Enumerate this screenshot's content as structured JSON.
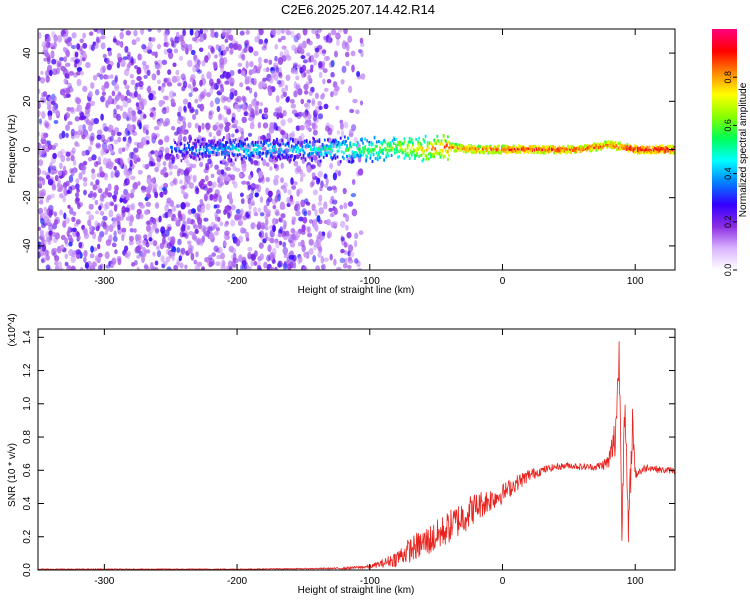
{
  "title": "C2E6.2025.207.14.42.R14",
  "colors": {
    "line": "#e8231e",
    "spectrogram_noise": "#8a2be2",
    "background": "#ffffff"
  },
  "chart_data": [
    {
      "type": "heatmap",
      "xlabel": "Height of straight line (km)",
      "ylabel": "Frequency (Hz)",
      "xlim": [
        -350,
        130
      ],
      "ylim": [
        -50,
        50
      ],
      "xticks": [
        -300,
        -200,
        -100,
        0,
        100
      ],
      "yticks": [
        -40,
        -20,
        0,
        20,
        40
      ],
      "grid": false,
      "colorbar": {
        "label": "Normalized spectral amplitude",
        "range": [
          0,
          1
        ],
        "ticks": [
          "0.0",
          "0.2",
          "0.4",
          "0.6",
          "0.8"
        ],
        "tick_values": [
          0.0,
          0.2,
          0.4,
          0.6,
          0.8
        ],
        "colormap": [
          "#ffffff",
          "#d9b3ff",
          "#8a2be2",
          "#3300ff",
          "#0080ff",
          "#00ffff",
          "#00ff55",
          "#88ff00",
          "#ffff00",
          "#ff8800",
          "#ff0000",
          "#ff0080"
        ]
      },
      "signal_ridge": {
        "x": [
          -250,
          -200,
          -150,
          -120,
          -100,
          -80,
          -60,
          -40,
          -20,
          0,
          20,
          40,
          60,
          80,
          90,
          100,
          130
        ],
        "center_freq_hz": [
          0,
          0,
          0,
          0,
          0,
          1,
          0,
          1,
          0,
          0,
          0,
          0,
          0,
          2,
          1,
          0,
          0
        ],
        "amplitude": [
          0.35,
          0.45,
          0.45,
          0.55,
          0.6,
          0.65,
          0.75,
          0.85,
          0.85,
          0.9,
          0.9,
          0.9,
          0.9,
          0.85,
          0.9,
          0.95,
          0.95
        ]
      },
      "noise_region_x": [
        -350,
        -105
      ]
    },
    {
      "type": "line",
      "xlabel": "Height of straight line (km)",
      "ylabel": "SNR (10 * v/v)",
      "y_multiplier": "(x10^4)",
      "xlim": [
        -350,
        130
      ],
      "ylim": [
        0,
        1.45
      ],
      "xticks": [
        -300,
        -200,
        -100,
        0,
        100
      ],
      "yticks": [
        "0.0",
        "0.2",
        "0.4",
        "0.6",
        "0.8",
        "1.0",
        "1.2",
        "1.4"
      ],
      "ytick_values": [
        0.0,
        0.2,
        0.4,
        0.6,
        0.8,
        1.0,
        1.2,
        1.4
      ],
      "grid": false,
      "series": [
        {
          "x": [
            -350,
            -300,
            -250,
            -200,
            -150,
            -120,
            -100,
            -90,
            -80,
            -70,
            -60,
            -50,
            -40,
            -30,
            -20,
            -10,
            0,
            10,
            20,
            30,
            40,
            50,
            60,
            70,
            75,
            80,
            85,
            88,
            90,
            92,
            95,
            98,
            100,
            110,
            120,
            130
          ],
          "values": [
            0.005,
            0.005,
            0.005,
            0.005,
            0.008,
            0.01,
            0.02,
            0.04,
            0.07,
            0.12,
            0.16,
            0.2,
            0.26,
            0.32,
            0.38,
            0.42,
            0.46,
            0.52,
            0.57,
            0.6,
            0.62,
            0.63,
            0.62,
            0.62,
            0.63,
            0.65,
            0.8,
            1.3,
            0.3,
            1.0,
            0.2,
            0.9,
            0.58,
            0.62,
            0.6,
            0.6
          ],
          "peak_to_peak": [
            0.005,
            0.005,
            0.005,
            0.005,
            0.005,
            0.01,
            0.02,
            0.05,
            0.1,
            0.15,
            0.18,
            0.2,
            0.2,
            0.22,
            0.18,
            0.15,
            0.12,
            0.1,
            0.08,
            0.05,
            0.04,
            0.04,
            0.04,
            0.04,
            0.06,
            0.1,
            0.3,
            0.3,
            0.3,
            0.3,
            0.3,
            0.2,
            0.08,
            0.04,
            0.04,
            0.04
          ]
        }
      ]
    }
  ]
}
